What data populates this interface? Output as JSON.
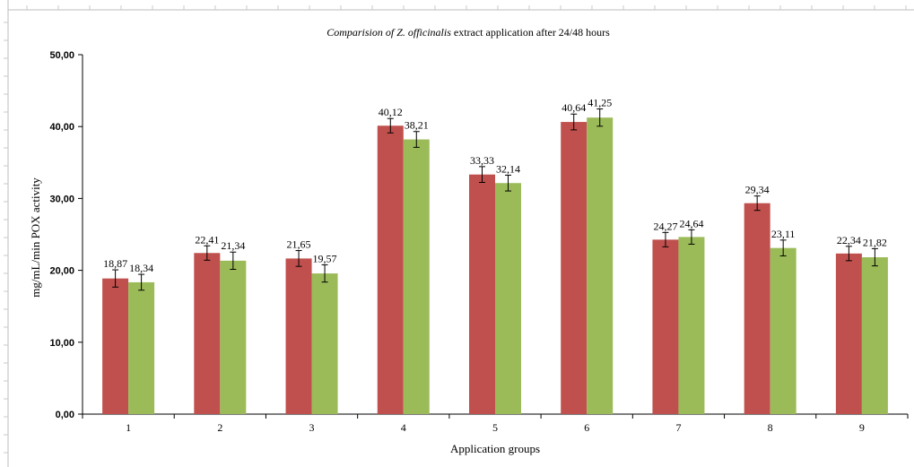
{
  "chart_data": {
    "type": "bar",
    "title_italic": "Comparision of Z. officinalis",
    "title_rest": " extract application after 24/48  hours",
    "xlabel": "Application groups",
    "ylabel": "mg/mL/min  POX  activity",
    "ylim": [
      0,
      50
    ],
    "yticks": [
      "0,00",
      "10,00",
      "20,00",
      "30,00",
      "40,00",
      "50,00"
    ],
    "ytick_values": [
      0,
      10,
      20,
      30,
      40,
      50
    ],
    "categories": [
      "1",
      "2",
      "3",
      "4",
      "5",
      "6",
      "7",
      "8",
      "9"
    ],
    "series": [
      {
        "color": "#c0504d",
        "values": [
          18.87,
          22.41,
          21.65,
          40.12,
          33.33,
          40.64,
          24.27,
          29.34,
          22.34
        ],
        "labels": [
          "18,87",
          "22,41",
          "21,65",
          "40,12",
          "33,33",
          "40,64",
          "24,27",
          "29,34",
          "22,34"
        ],
        "error": [
          1.2,
          1.0,
          1.1,
          1.0,
          1.1,
          1.1,
          1.0,
          1.0,
          1.0
        ]
      },
      {
        "color": "#9bbb59",
        "values": [
          18.34,
          21.34,
          19.57,
          38.21,
          32.14,
          41.25,
          24.64,
          23.11,
          21.82
        ],
        "labels": [
          "18,34",
          "21,34",
          "19,57",
          "38,21",
          "32,14",
          "41,25",
          "24,64",
          "23,11",
          "21,82"
        ],
        "error": [
          1.1,
          1.2,
          1.2,
          1.1,
          1.1,
          1.2,
          1.0,
          1.1,
          1.2
        ]
      }
    ],
    "grid": false,
    "legend": "none"
  }
}
